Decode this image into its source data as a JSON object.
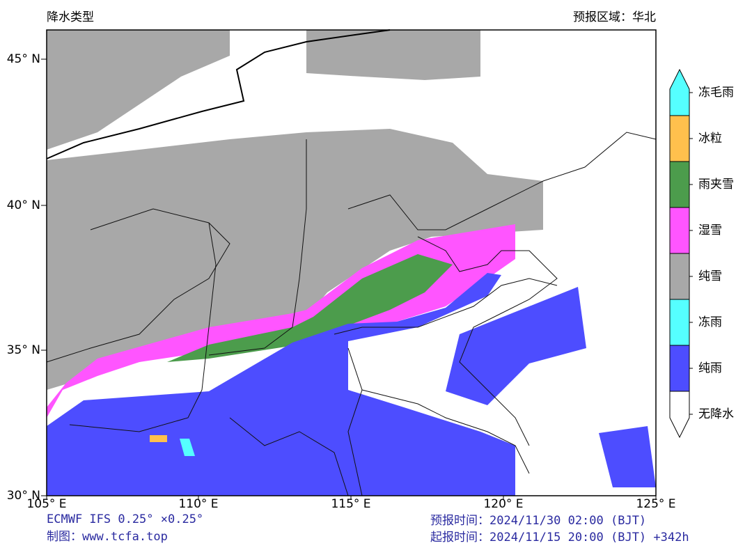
{
  "header": {
    "title": "降水类型",
    "region": "预报区域：华北"
  },
  "map": {
    "lat_labels": [
      "45° N",
      "40° N",
      "35° N",
      "30° N"
    ],
    "lon_labels": [
      "105° E",
      "110° E",
      "115° E",
      "120° E",
      "125° E"
    ]
  },
  "legend": [
    {
      "label": "冻毛雨",
      "color": "#55ffff"
    },
    {
      "label": "冰粒",
      "color": "#ffc04d"
    },
    {
      "label": "雨夹雪",
      "color": "#4c9c4c"
    },
    {
      "label": "湿雪",
      "color": "#ff55ff"
    },
    {
      "label": "纯雪",
      "color": "#a8a8a8"
    },
    {
      "label": "冻雨",
      "color": "#55ffff"
    },
    {
      "label": "纯雨",
      "color": "#4d4dff"
    },
    {
      "label": "无降水",
      "color": "#ffffff"
    }
  ],
  "footer": {
    "model": "ECMWF IFS 0.25° ×0.25°",
    "credit": "制图：www.tcfa.top",
    "valid_time": "预报时间：2024/11/30 02:00 (BJT)",
    "init_time": "起报时间：2024/11/15 20:00 (BJT) +342h"
  }
}
